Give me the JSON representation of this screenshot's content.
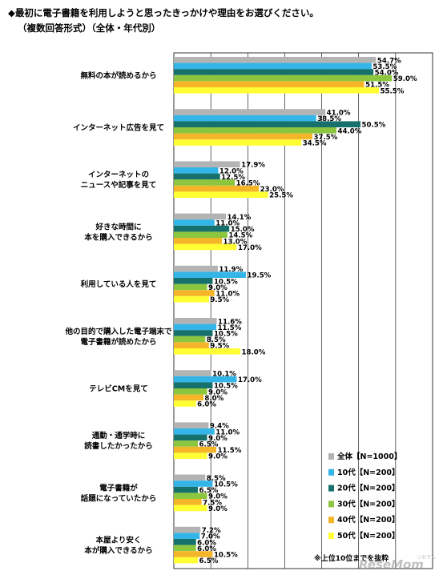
{
  "header": {
    "title_line1": "◆最初に電子書籍を利用しようと思ったきっかけや理由をお選びください。",
    "title_line2": "（複数回答形式）（全体・年代別）"
  },
  "footer": {
    "note": "※上位10位までを抜粋",
    "watermark": "ReseMom",
    "watermark_sub": "リセマム"
  },
  "chart_data": {
    "type": "bar",
    "orientation": "horizontal",
    "title": "◆最初に電子書籍を利用しようと思ったきっかけや理由をお選びください。（複数回答形式）（全体・年代別）",
    "xlabel": "",
    "ylabel": "",
    "xlim": [
      0,
      70
    ],
    "grid": true,
    "legend_position": "bottom-right",
    "value_suffix": "%",
    "categories": [
      [
        "無料の本が読めるから"
      ],
      [
        "インターネット広告を見て"
      ],
      [
        "インターネットの",
        "ニュースや記事を見て"
      ],
      [
        "好きな時間に",
        "本を購入できるから"
      ],
      [
        "利用している人を見て"
      ],
      [
        "他の目的で購入した電子端末で",
        "電子書籍が読めたから"
      ],
      [
        "テレビCMを見て"
      ],
      [
        "通勤・通学時に",
        "読書したかったから"
      ],
      [
        "電子書籍が",
        "話題になっていたから"
      ],
      [
        "本屋より安く",
        "本が購入できるから"
      ]
    ],
    "series": [
      {
        "name": "全体【N=1000】",
        "color": "#b3b3b3",
        "values": [
          54.7,
          41.0,
          17.9,
          14.1,
          11.9,
          11.6,
          10.1,
          9.4,
          8.5,
          7.2
        ]
      },
      {
        "name": "10代【N=200】",
        "color": "#33b5e8",
        "values": [
          53.5,
          38.5,
          12.0,
          11.0,
          19.5,
          11.5,
          17.0,
          11.0,
          10.5,
          7.0
        ]
      },
      {
        "name": "20代【N=200】",
        "color": "#16706c",
        "values": [
          54.0,
          50.5,
          12.5,
          15.0,
          10.5,
          10.5,
          10.5,
          9.0,
          6.5,
          6.0
        ]
      },
      {
        "name": "30代【N=200】",
        "color": "#8cc63e",
        "values": [
          59.0,
          44.0,
          16.5,
          14.5,
          9.0,
          8.5,
          9.0,
          6.5,
          9.0,
          6.0
        ]
      },
      {
        "name": "40代【N=200】",
        "color": "#f5b528",
        "values": [
          51.5,
          37.5,
          23.0,
          13.0,
          11.0,
          9.5,
          8.0,
          11.5,
          7.5,
          10.5
        ]
      },
      {
        "name": "50代【N=200】",
        "color": "#ffff33",
        "values": [
          55.5,
          34.5,
          25.5,
          17.0,
          9.5,
          18.0,
          6.0,
          9.0,
          9.0,
          6.5
        ]
      }
    ]
  }
}
